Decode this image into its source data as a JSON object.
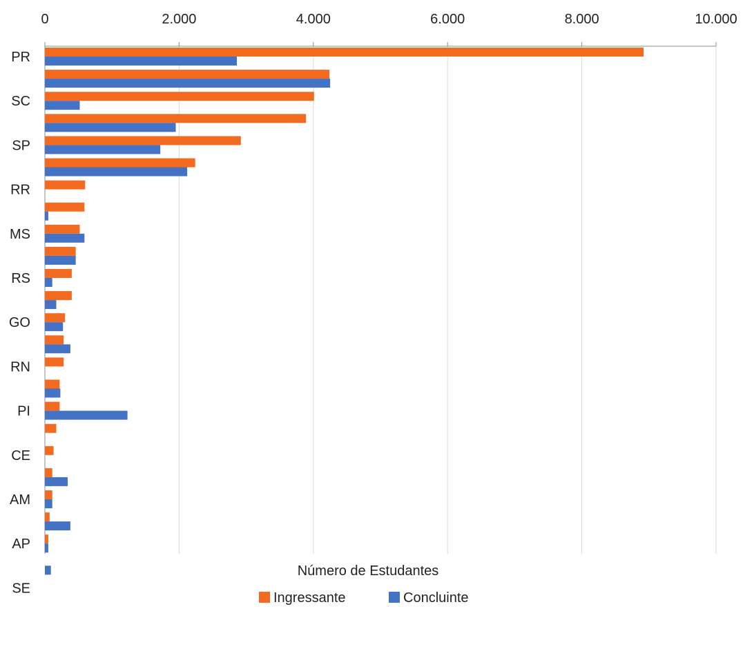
{
  "chart_data": {
    "type": "bar",
    "orientation": "horizontal",
    "xlabel": "Número de Estudantes",
    "xlim": [
      0,
      10000
    ],
    "x_ticks": [
      "0",
      "2.000",
      "4.000",
      "6.000",
      "8.000",
      "10.000"
    ],
    "x_tick_values": [
      0,
      2000,
      4000,
      6000,
      8000,
      10000
    ],
    "grid": "vertical",
    "legend_position": "bottom",
    "categories": [
      "PR",
      "",
      "SC",
      "",
      "SP",
      "",
      "RR",
      "",
      "MS",
      "",
      "RS",
      "",
      "GO",
      "",
      "RN",
      "",
      "PI",
      "",
      "CE",
      "",
      "AM",
      "",
      "AP",
      "",
      "SE"
    ],
    "series": [
      {
        "name": "Ingressante",
        "color": "#f26b21",
        "values": [
          8920,
          4240,
          4010,
          3890,
          2920,
          2240,
          600,
          590,
          520,
          460,
          400,
          400,
          300,
          280,
          280,
          220,
          220,
          170,
          130,
          110,
          110,
          70,
          50,
          0,
          0
        ]
      },
      {
        "name": "Concluinte",
        "color": "#4472c4",
        "values": [
          2860,
          4250,
          520,
          1950,
          1720,
          2120,
          0,
          50,
          590,
          460,
          110,
          170,
          270,
          380,
          0,
          230,
          1230,
          0,
          0,
          340,
          110,
          380,
          50,
          90,
          0
        ]
      }
    ]
  }
}
